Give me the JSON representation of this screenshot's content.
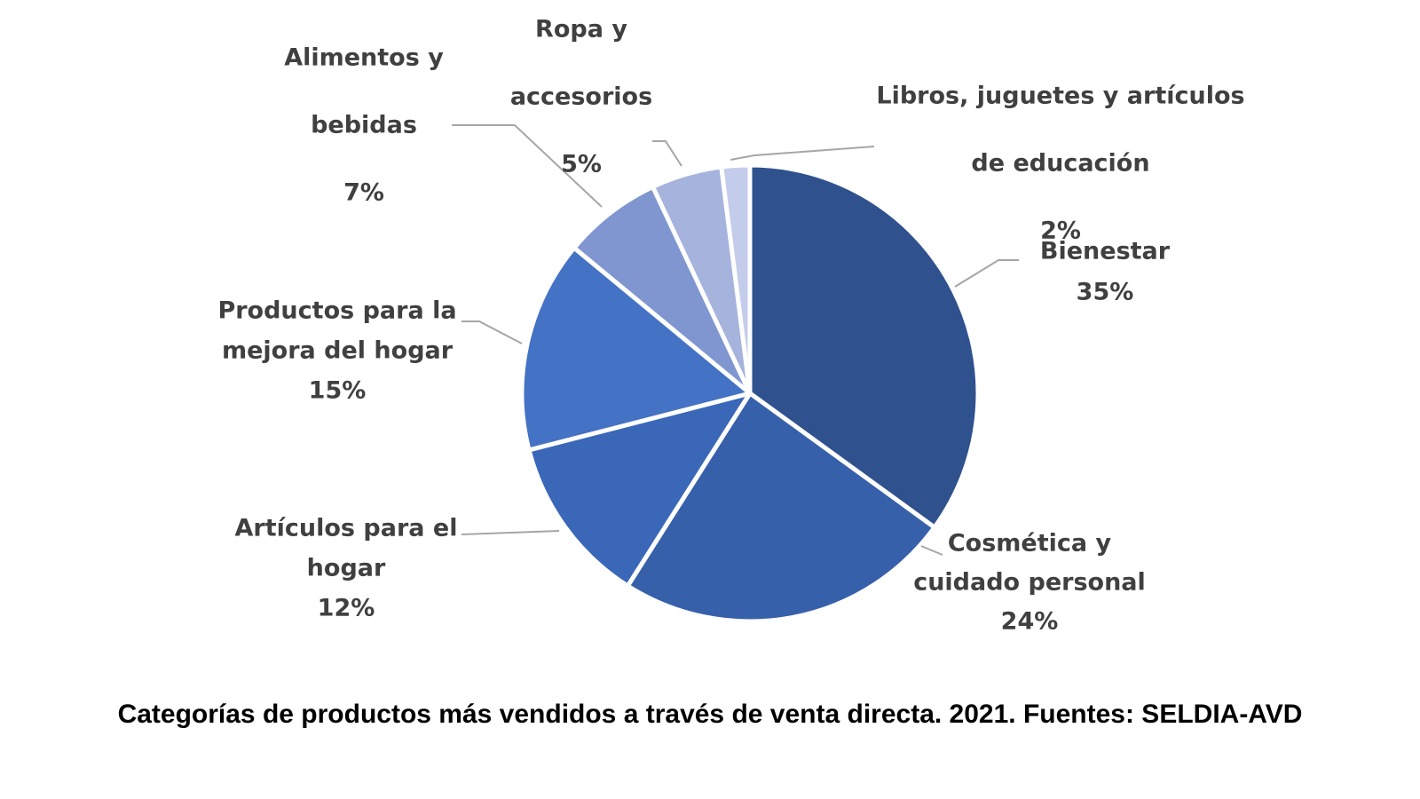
{
  "chart_data": {
    "type": "pie",
    "title": "",
    "caption": "Categorías de productos más vendidos a través de venta directa. 2021. Fuentes: SELDIA-AVD",
    "start": "12 o'clock",
    "direction": "clockwise",
    "legend": "none",
    "slices": [
      {
        "label_lines": [
          "Bienestar"
        ],
        "value": 35,
        "value_label": "35%",
        "color": "#2f528f"
      },
      {
        "label_lines": [
          "Cosmética y",
          "cuidado personal"
        ],
        "value": 24,
        "value_label": "24%",
        "color": "#3760ab"
      },
      {
        "label_lines": [
          "Artículos para el",
          "hogar"
        ],
        "value": 12,
        "value_label": "12%",
        "color": "#3a67b8"
      },
      {
        "label_lines": [
          "Productos para la",
          "mejora del hogar"
        ],
        "value": 15,
        "value_label": "15%",
        "color": "#4472c4"
      },
      {
        "label_lines": [
          "Alimentos y",
          "bebidas"
        ],
        "value": 7,
        "value_label": "7%",
        "color": "#7f96d0"
      },
      {
        "label_lines": [
          "Ropa y",
          "accesorios"
        ],
        "value": 5,
        "value_label": "5%",
        "color": "#a5b3dd"
      },
      {
        "label_lines": [
          "Libros, juguetes y artículos",
          "de educación"
        ],
        "value": 2,
        "value_label": "2%",
        "color": "#c4cceb"
      }
    ]
  }
}
